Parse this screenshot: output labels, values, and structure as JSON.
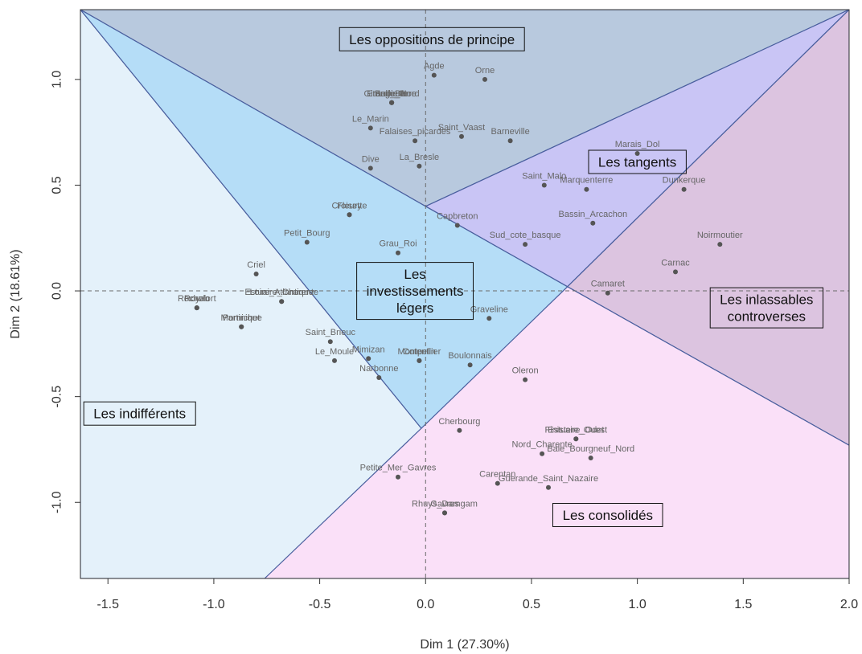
{
  "chart_data": {
    "type": "scatter",
    "title": "",
    "xlabel": "Dim 1 (27.30%)",
    "ylabel": "Dim 2 (18.61%)",
    "xlim": [
      -1.63,
      2.0
    ],
    "ylim": [
      -1.36,
      1.33
    ],
    "xticks": [
      -1.5,
      -1.0,
      -0.5,
      0.0,
      0.5,
      1.0,
      1.5,
      2.0
    ],
    "xtick_labels": [
      "-1.5",
      "-1.0",
      "-0.5",
      "0.0",
      "0.5",
      "1.0",
      "1.5",
      "2.0"
    ],
    "yticks": [
      -1.0,
      -0.5,
      0.0,
      0.5,
      1.0
    ],
    "ytick_labels": [
      "-1.0",
      "-0.5",
      "0.0",
      "0.5",
      "1.0"
    ],
    "reference_lines": {
      "x": 0,
      "y": 0,
      "style": "dashed"
    },
    "colors": {
      "oppositions": "#b8c9de",
      "tangents": "#c9c5f5",
      "inlassables": "#dcc4e0",
      "consolides": "#fae0f8",
      "indifferents": "#e4f1fa",
      "investissements": "#b5ddf7",
      "zone_border": "#4a5f9e",
      "point": "#555555",
      "point_label": "#666666"
    },
    "zones": [
      {
        "name": "Les oppositions de principe",
        "vertices": [
          [
            -1.63,
            1.33
          ],
          [
            2.0,
            1.33
          ],
          [
            0.0,
            0.4
          ]
        ],
        "fill_key": "oppositions"
      },
      {
        "name": "Les tangents",
        "vertices": [
          [
            0.0,
            0.4
          ],
          [
            2.0,
            1.33
          ],
          [
            0.67,
            0.02
          ]
        ],
        "fill_key": "tangents"
      },
      {
        "name": "Les inlassables controverses",
        "vertices": [
          [
            2.0,
            1.33
          ],
          [
            2.0,
            -0.73
          ],
          [
            0.67,
            0.02
          ]
        ],
        "fill_key": "inlassables"
      },
      {
        "name": "Les consolidés",
        "vertices": [
          [
            0.67,
            0.02
          ],
          [
            2.0,
            -0.73
          ],
          [
            2.0,
            -1.36
          ],
          [
            -0.78,
            -1.36
          ]
        ],
        "fill_key": "consolides"
      },
      {
        "name": "Les indifférents",
        "vertices": [
          [
            -1.63,
            1.33
          ],
          [
            -0.02,
            -0.65
          ],
          [
            -0.76,
            -1.36
          ],
          [
            -1.63,
            -1.36
          ]
        ],
        "fill_key": "indifferents"
      },
      {
        "name": "Les investissements légers",
        "vertices": [
          [
            -1.63,
            1.33
          ],
          [
            0.0,
            0.4
          ],
          [
            0.67,
            0.02
          ],
          [
            -0.02,
            -0.65
          ]
        ],
        "fill_key": "investissements"
      }
    ],
    "zone_labels": [
      {
        "lines": [
          "Les oppositions de principe"
        ],
        "x": 0.03,
        "y": 1.19
      },
      {
        "lines": [
          "Les tangents"
        ],
        "x": 1.0,
        "y": 0.61
      },
      {
        "lines": [
          "Les inlassables",
          "controverses"
        ],
        "x": 1.61,
        "y": -0.08
      },
      {
        "lines": [
          "Les consolidés"
        ],
        "x": 0.86,
        "y": -1.06
      },
      {
        "lines": [
          "Les indifférents"
        ],
        "x": -1.35,
        "y": -0.58
      },
      {
        "lines": [
          "Les",
          "investissements",
          "légers"
        ],
        "x": -0.05,
        "y": 0.0
      }
    ],
    "points": [
      {
        "label": "Agde",
        "x": 0.04,
        "y": 1.02
      },
      {
        "label": "Orne",
        "x": 0.28,
        "y": 1.0
      },
      {
        "label": "Etang_Berre",
        "x": -0.16,
        "y": 0.89
      },
      {
        "label": "Gironde_Nord",
        "x": -0.16,
        "y": 0.89
      },
      {
        "label": "Belle_Ile",
        "x": -0.16,
        "y": 0.89
      },
      {
        "label": "Lorient",
        "x": -0.16,
        "y": 0.89
      },
      {
        "label": "Le_Marin",
        "x": -0.26,
        "y": 0.77
      },
      {
        "label": "Falaises_picardes",
        "x": -0.05,
        "y": 0.71
      },
      {
        "label": "Saint_Vaast",
        "x": 0.17,
        "y": 0.73
      },
      {
        "label": "Barneville",
        "x": 0.4,
        "y": 0.71
      },
      {
        "label": "La_Bresle",
        "x": -0.03,
        "y": 0.59
      },
      {
        "label": "Dive",
        "x": -0.26,
        "y": 0.58
      },
      {
        "label": "Marais_Dol",
        "x": 1.0,
        "y": 0.65
      },
      {
        "label": "Saint_Malo",
        "x": 0.56,
        "y": 0.5
      },
      {
        "label": "Marquenterre",
        "x": 0.76,
        "y": 0.48
      },
      {
        "label": "Dunkerque",
        "x": 1.22,
        "y": 0.48
      },
      {
        "label": "Fleury",
        "x": -0.36,
        "y": 0.36
      },
      {
        "label": "Croisette",
        "x": -0.36,
        "y": 0.36
      },
      {
        "label": "Capbreton",
        "x": 0.15,
        "y": 0.31
      },
      {
        "label": "Bassin_Arcachon",
        "x": 0.79,
        "y": 0.32
      },
      {
        "label": "Sud_cote_basque",
        "x": 0.47,
        "y": 0.22
      },
      {
        "label": "Petit_Bourg",
        "x": -0.56,
        "y": 0.23
      },
      {
        "label": "Noirmoutier",
        "x": 1.39,
        "y": 0.22
      },
      {
        "label": "Grau_Roi",
        "x": -0.13,
        "y": 0.18
      },
      {
        "label": "Criel",
        "x": -0.8,
        "y": 0.08
      },
      {
        "label": "Carnac",
        "x": 1.18,
        "y": 0.09
      },
      {
        "label": "Camaret",
        "x": 0.86,
        "y": -0.01
      },
      {
        "label": "Estuaire_Charente",
        "x": -0.68,
        "y": -0.05
      },
      {
        "label": "Loire_Atlantique",
        "x": -0.68,
        "y": -0.05
      },
      {
        "label": "Rochefort",
        "x": -1.08,
        "y": -0.08
      },
      {
        "label": "Royan",
        "x": -1.08,
        "y": -0.08
      },
      {
        "label": "Pornic",
        "x": -1.08,
        "y": -0.08
      },
      {
        "label": "Martinique",
        "x": -0.87,
        "y": -0.17
      },
      {
        "label": "Pornichet",
        "x": -0.87,
        "y": -0.17
      },
      {
        "label": "Graveline",
        "x": 0.3,
        "y": -0.13
      },
      {
        "label": "Saint_Brieuc",
        "x": -0.45,
        "y": -0.24
      },
      {
        "label": "Mimizan",
        "x": -0.27,
        "y": -0.32
      },
      {
        "label": "Le_Moule",
        "x": -0.43,
        "y": -0.33
      },
      {
        "label": "Cotentin",
        "x": -0.03,
        "y": -0.33
      },
      {
        "label": "Montpellier",
        "x": -0.03,
        "y": -0.33
      },
      {
        "label": "Boulonnais",
        "x": 0.21,
        "y": -0.35
      },
      {
        "label": "Narbonne",
        "x": -0.22,
        "y": -0.41
      },
      {
        "label": "Oleron",
        "x": 0.47,
        "y": -0.42
      },
      {
        "label": "Finistere_Ouest",
        "x": 0.71,
        "y": -0.7
      },
      {
        "label": "Estuaire_Odet",
        "x": 0.71,
        "y": -0.7
      },
      {
        "label": "Cherbourg",
        "x": 0.16,
        "y": -0.66
      },
      {
        "label": "Nord_Charente",
        "x": 0.55,
        "y": -0.77
      },
      {
        "label": "Baie_Bourgneuf_Nord",
        "x": 0.78,
        "y": -0.79
      },
      {
        "label": "Petite_Mer_Gavres",
        "x": -0.13,
        "y": -0.88
      },
      {
        "label": "Carentan",
        "x": 0.34,
        "y": -0.91
      },
      {
        "label": "Guerande_Saint_Nazaire",
        "x": 0.58,
        "y": -0.93
      },
      {
        "label": "Rhuys_Damgam",
        "x": 0.09,
        "y": -1.05
      },
      {
        "label": "Gavres",
        "x": 0.09,
        "y": -1.05
      }
    ]
  }
}
